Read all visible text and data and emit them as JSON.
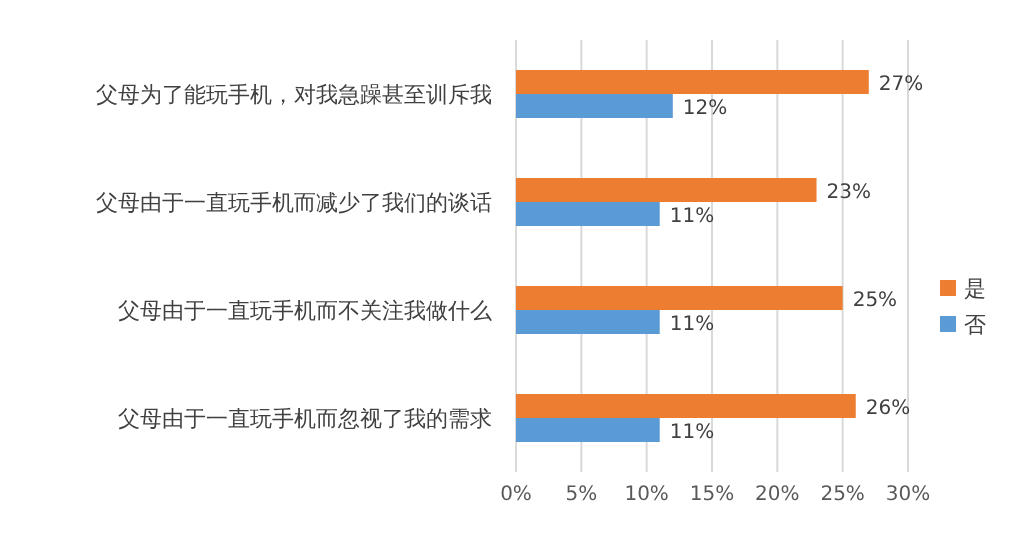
{
  "chart_data": {
    "type": "bar",
    "orientation": "horizontal",
    "categories": [
      "父母为了能玩手机，对我急躁甚至训斥我",
      "父母由于一直玩手机而减少了我们的谈话",
      "父母由于一直玩手机而不关注我做什么",
      "父母由于一直玩手机而忽视了我的需求"
    ],
    "series": [
      {
        "name": "是",
        "color": "#ed7d31",
        "values": [
          27,
          23,
          25,
          26
        ],
        "value_labels": [
          "27%",
          "23%",
          "25%",
          "26%"
        ]
      },
      {
        "name": "否",
        "color": "#5b9bd5",
        "values": [
          12,
          11,
          11,
          11
        ],
        "value_labels": [
          "12%",
          "11%",
          "11%",
          "11%"
        ]
      }
    ],
    "xlim": [
      0,
      30
    ],
    "xticks": [
      {
        "value": 0,
        "label": "0%"
      },
      {
        "value": 5,
        "label": "5%"
      },
      {
        "value": 10,
        "label": "10%"
      },
      {
        "value": 15,
        "label": "15%"
      },
      {
        "value": 20,
        "label": "20%"
      },
      {
        "value": 25,
        "label": "25%"
      },
      {
        "value": 30,
        "label": "30%"
      }
    ],
    "grid": "x",
    "legend": "right"
  }
}
